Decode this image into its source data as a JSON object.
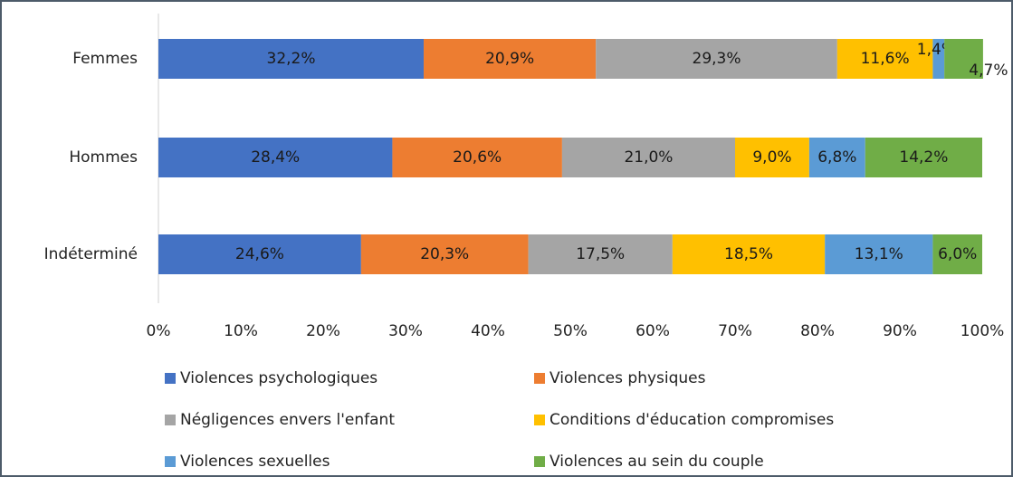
{
  "chart_data": {
    "type": "stacked-barh",
    "categories": [
      "Femmes",
      "Hommes",
      "Indéterminé"
    ],
    "series": [
      {
        "name": "Violences psychologiques",
        "color": "#4472c4",
        "values": [
          32.2,
          28.4,
          24.6
        ],
        "value_labels": [
          "32,2%",
          "28,4%",
          "24,6%"
        ]
      },
      {
        "name": "Violences physiques",
        "color": "#ed7d31",
        "values": [
          20.9,
          20.6,
          20.3
        ],
        "value_labels": [
          "20,9%",
          "20,6%",
          "20,3%"
        ]
      },
      {
        "name": "Négligences envers l'enfant",
        "color": "#a5a5a5",
        "values": [
          29.3,
          21.0,
          17.5
        ],
        "value_labels": [
          "29,3%",
          "21,0%",
          "17,5%"
        ]
      },
      {
        "name": "Conditions d'éducation compromises",
        "color": "#ffc000",
        "values": [
          11.6,
          9.0,
          18.5
        ],
        "value_labels": [
          "11,6%",
          "9,0%",
          "18,5%"
        ]
      },
      {
        "name": "Violences sexuelles",
        "color": "#5b9bd5",
        "values": [
          1.4,
          6.8,
          13.1
        ],
        "value_labels": [
          "1,4%",
          "6,8%",
          "13,1%"
        ]
      },
      {
        "name": "Violences au sein du couple",
        "color": "#70ad47",
        "values": [
          4.7,
          14.2,
          6.0
        ],
        "value_labels": [
          "4,7%",
          "14,2%",
          "6,0%"
        ]
      }
    ],
    "xlim": [
      0,
      100
    ],
    "xticks": [
      {
        "value": 0,
        "label": "0%"
      },
      {
        "value": 10,
        "label": "10%"
      },
      {
        "value": 20,
        "label": "20%"
      },
      {
        "value": 30,
        "label": "30%"
      },
      {
        "value": 40,
        "label": "40%"
      },
      {
        "value": 50,
        "label": "50%"
      },
      {
        "value": 60,
        "label": "60%"
      },
      {
        "value": 70,
        "label": "70%"
      },
      {
        "value": 80,
        "label": "80%"
      },
      {
        "value": 90,
        "label": "90%"
      },
      {
        "value": 100,
        "label": "100%"
      }
    ]
  }
}
